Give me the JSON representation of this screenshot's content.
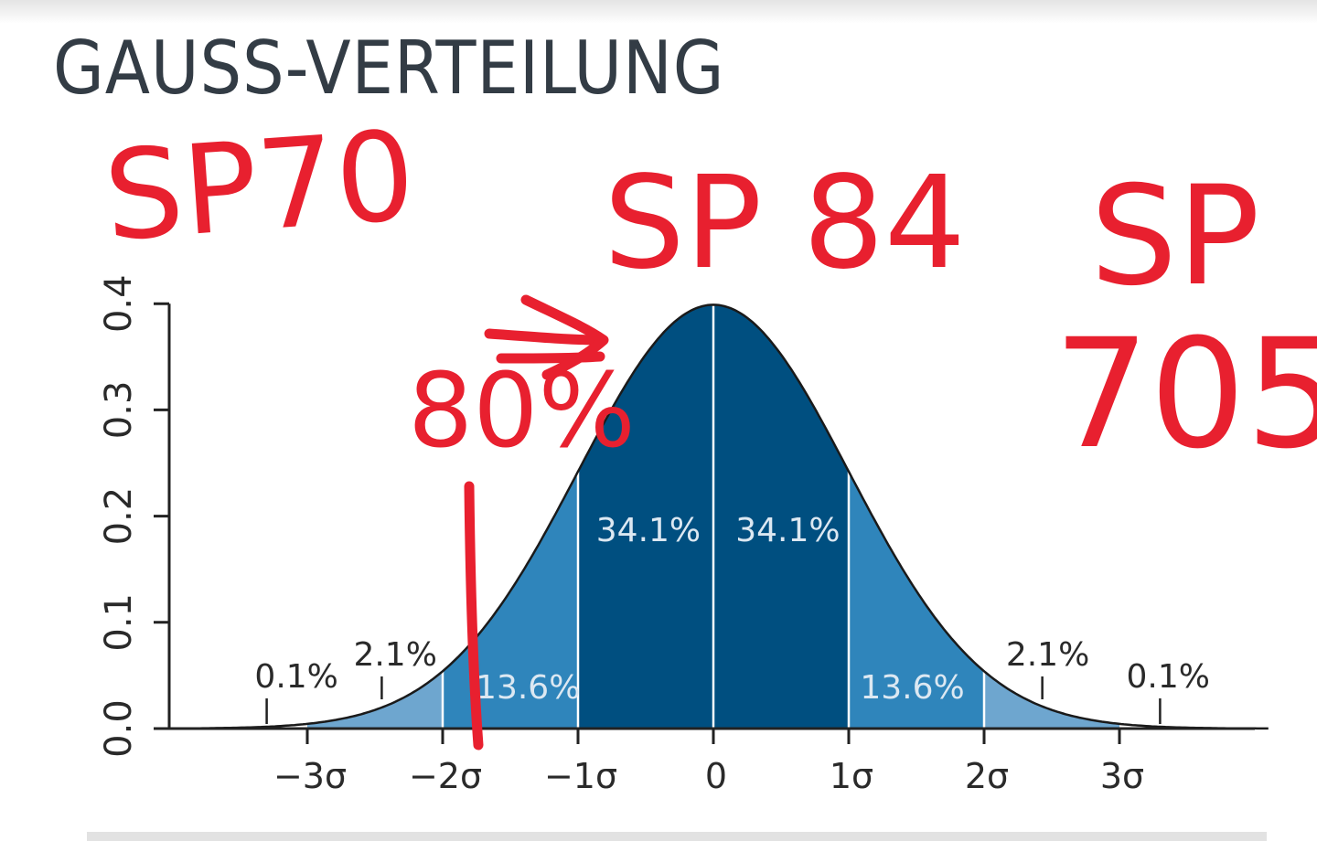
{
  "page": {
    "title": "GAUSS-VERTEILUNG"
  },
  "chart_data": {
    "type": "area",
    "title": "",
    "xlabel": "",
    "ylabel": "",
    "distribution": "normal",
    "mean": 0,
    "sd": 1,
    "xlim": [
      -4,
      4
    ],
    "ylim": [
      0,
      0.4
    ],
    "y_ticks": [
      "0.0",
      "0.1",
      "0.2",
      "0.3",
      "0.4"
    ],
    "y_tick_values": [
      0,
      0.1,
      0.2,
      0.3,
      0.4
    ],
    "x_ticks": [
      "−3σ",
      "−2σ",
      "−1σ",
      "0",
      "1σ",
      "2σ",
      "3σ"
    ],
    "x_tick_values": [
      -3,
      -2,
      -1,
      0,
      1,
      2,
      3
    ],
    "grid": false,
    "regions": [
      {
        "from": -4,
        "to": -3,
        "percent": "0.1%",
        "color": "#ffffff"
      },
      {
        "from": -3,
        "to": -2,
        "percent": "2.1%",
        "color": "#6ea6cf"
      },
      {
        "from": -2,
        "to": -1,
        "percent": "13.6%",
        "color": "#2f85bb"
      },
      {
        "from": -1,
        "to": 0,
        "percent": "34.1%",
        "color": "#004f80"
      },
      {
        "from": 0,
        "to": 1,
        "percent": "34.1%",
        "color": "#004f80"
      },
      {
        "from": 1,
        "to": 2,
        "percent": "13.6%",
        "color": "#2f85bb"
      },
      {
        "from": 2,
        "to": 3,
        "percent": "2.1%",
        "color": "#6ea6cf"
      },
      {
        "from": 3,
        "to": 4,
        "percent": "0.1%",
        "color": "#ffffff"
      }
    ],
    "annotations": [
      {
        "text": "SP70",
        "color": "#e8202f"
      },
      {
        "text": "SP 84",
        "color": "#e8202f"
      },
      {
        "text": "SP",
        "color": "#e8202f"
      },
      {
        "text": "705",
        "color": "#e8202f"
      },
      {
        "text": "80%",
        "color": "#e8202f"
      }
    ]
  }
}
